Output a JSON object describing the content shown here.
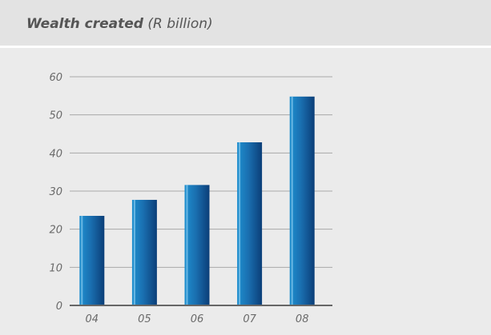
{
  "header": {
    "title_main": "Wealth created",
    "title_unit": "(R billion)"
  },
  "chart_data": {
    "type": "bar",
    "title": "Wealth created (R billion)",
    "xlabel": "",
    "ylabel": "",
    "categories": [
      "04",
      "05",
      "06",
      "07",
      "08"
    ],
    "values": [
      23.5,
      27.7,
      31.6,
      42.8,
      54.8
    ],
    "ylim": [
      0,
      60
    ],
    "yticks": [
      "0",
      "10",
      "20",
      "30",
      "40",
      "50",
      "60"
    ],
    "grid": true,
    "bar_color_light": "#1e8fcf",
    "bar_color_dark": "#0b3e78"
  }
}
